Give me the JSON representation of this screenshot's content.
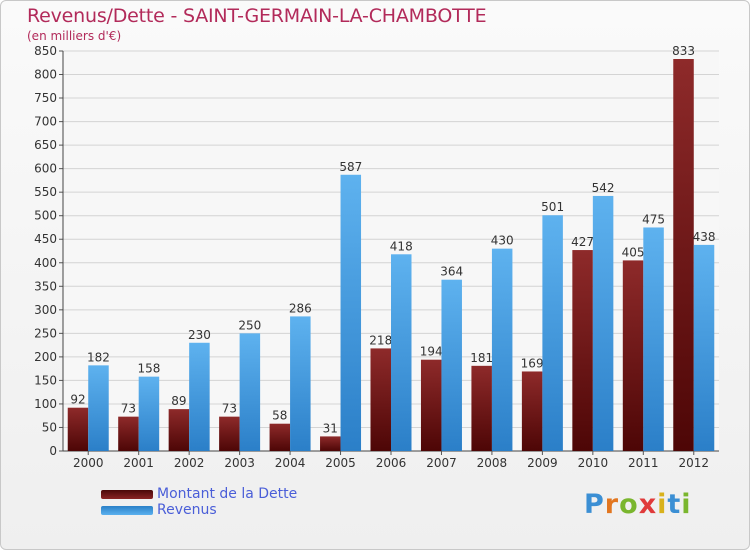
{
  "chart_data": {
    "type": "bar",
    "title": "Revenus/Dette - SAINT-GERMAIN-LA-CHAMBOTTE",
    "subtitle": "(en milliers d'€)",
    "categories": [
      "2000",
      "2001",
      "2002",
      "2003",
      "2004",
      "2005",
      "2006",
      "2007",
      "2008",
      "2009",
      "2010",
      "2011",
      "2012"
    ],
    "series": [
      {
        "name": "Montant de la Dette",
        "color": "#7a1c1c",
        "values": [
          92,
          73,
          89,
          73,
          58,
          31,
          218,
          194,
          181,
          169,
          427,
          405,
          833
        ]
      },
      {
        "name": "Revenus",
        "color": "#3a97e0",
        "values": [
          182,
          158,
          230,
          250,
          286,
          587,
          418,
          364,
          430,
          501,
          542,
          475,
          438
        ]
      }
    ],
    "ylim": [
      0,
      850
    ],
    "y_ticks": [
      0,
      50,
      100,
      150,
      200,
      250,
      300,
      350,
      400,
      450,
      500,
      550,
      600,
      650,
      700,
      750,
      800,
      850
    ],
    "grid": true,
    "legend_position": "bottom-left"
  },
  "logo": {
    "letters": [
      "P",
      "r",
      "o",
      "x",
      "i",
      "t",
      "i"
    ],
    "colors": [
      "#3b8fd4",
      "#e2761f",
      "#7ab62e",
      "#e03a3a",
      "#d9b21c",
      "#3b8fd4",
      "#7ab62e"
    ]
  }
}
